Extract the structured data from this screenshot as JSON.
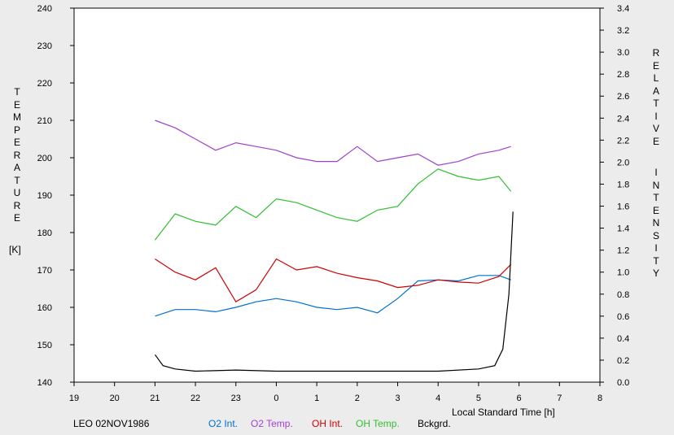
{
  "chart_data": {
    "type": "line",
    "xlabel": "Local Standard Time [h]",
    "x_ticks": [
      "19",
      "20",
      "21",
      "22",
      "23",
      "0",
      "1",
      "2",
      "3",
      "4",
      "5",
      "6",
      "7",
      "8"
    ],
    "x_range_hours": [
      19,
      32
    ],
    "y_left": {
      "label": "TEMPERATURE",
      "unit": "[K]",
      "range": [
        140,
        240
      ],
      "ticks": [
        "140",
        "150",
        "160",
        "170",
        "180",
        "190",
        "200",
        "210",
        "220",
        "230",
        "240"
      ]
    },
    "y_right": {
      "label_1": "RELATIVE",
      "label_2": "INTENSITY",
      "range": [
        0,
        3.4
      ],
      "ticks": [
        "0.0",
        "0.2",
        "0.4",
        "0.6",
        "0.8",
        "1.0",
        "1.2",
        "1.4",
        "1.6",
        "1.8",
        "2.0",
        "2.2",
        "2.4",
        "2.6",
        "2.8",
        "3.0",
        "3.2",
        "3.4"
      ]
    },
    "footer_text": "LEO 02NOV1986",
    "series": [
      {
        "name": "O2 Int.",
        "axis": "right",
        "color": "#0070d0",
        "x": [
          21.0,
          21.5,
          22.0,
          22.5,
          23.0,
          23.5,
          24.0,
          24.5,
          25.0,
          25.5,
          26.0,
          26.5,
          27.0,
          27.5,
          28.0,
          28.5,
          29.0,
          29.5,
          29.8
        ],
        "y": [
          0.6,
          0.66,
          0.66,
          0.64,
          0.68,
          0.73,
          0.76,
          0.73,
          0.68,
          0.66,
          0.68,
          0.63,
          0.76,
          0.92,
          0.93,
          0.92,
          0.97,
          0.97,
          0.93
        ]
      },
      {
        "name": "O2 Temp.",
        "axis": "left",
        "color": "#a040d0",
        "x": [
          21.0,
          21.5,
          22.0,
          22.5,
          23.0,
          23.5,
          24.0,
          24.5,
          25.0,
          25.5,
          26.0,
          26.5,
          27.0,
          27.5,
          28.0,
          28.5,
          29.0,
          29.5,
          29.8
        ],
        "y": [
          210,
          208,
          205,
          202,
          204,
          203,
          202,
          200,
          199,
          199,
          203,
          199,
          200,
          201,
          198,
          199,
          201,
          202,
          203
        ]
      },
      {
        "name": "OH Int.",
        "axis": "right",
        "color": "#d00000",
        "x": [
          21.0,
          21.5,
          22.0,
          22.5,
          23.0,
          23.5,
          24.0,
          24.5,
          25.0,
          25.5,
          26.0,
          26.5,
          27.0,
          27.5,
          28.0,
          28.5,
          29.0,
          29.5,
          29.8
        ],
        "y": [
          1.12,
          1.0,
          0.93,
          1.04,
          0.73,
          0.84,
          1.12,
          1.02,
          1.05,
          0.99,
          0.95,
          0.92,
          0.86,
          0.88,
          0.93,
          0.91,
          0.9,
          0.96,
          1.07
        ]
      },
      {
        "name": "OH Temp.",
        "axis": "left",
        "color": "#30c030",
        "x": [
          21.0,
          21.5,
          22.0,
          22.5,
          23.0,
          23.5,
          24.0,
          24.5,
          25.0,
          25.5,
          26.0,
          26.5,
          27.0,
          27.5,
          28.0,
          28.5,
          29.0,
          29.5,
          29.8
        ],
        "y": [
          178,
          185,
          183,
          182,
          187,
          184,
          189,
          188,
          186,
          184,
          183,
          186,
          187,
          193,
          197,
          195,
          194,
          195,
          191
        ]
      },
      {
        "name": "Bckgrd.",
        "axis": "right",
        "color": "#000000",
        "x": [
          21.0,
          21.2,
          21.5,
          22.0,
          23.0,
          24.0,
          25.0,
          26.0,
          27.0,
          28.0,
          29.0,
          29.4,
          29.6,
          29.75,
          29.85
        ],
        "y": [
          0.25,
          0.15,
          0.12,
          0.1,
          0.11,
          0.1,
          0.1,
          0.1,
          0.1,
          0.1,
          0.12,
          0.15,
          0.3,
          0.8,
          1.55
        ]
      }
    ]
  }
}
